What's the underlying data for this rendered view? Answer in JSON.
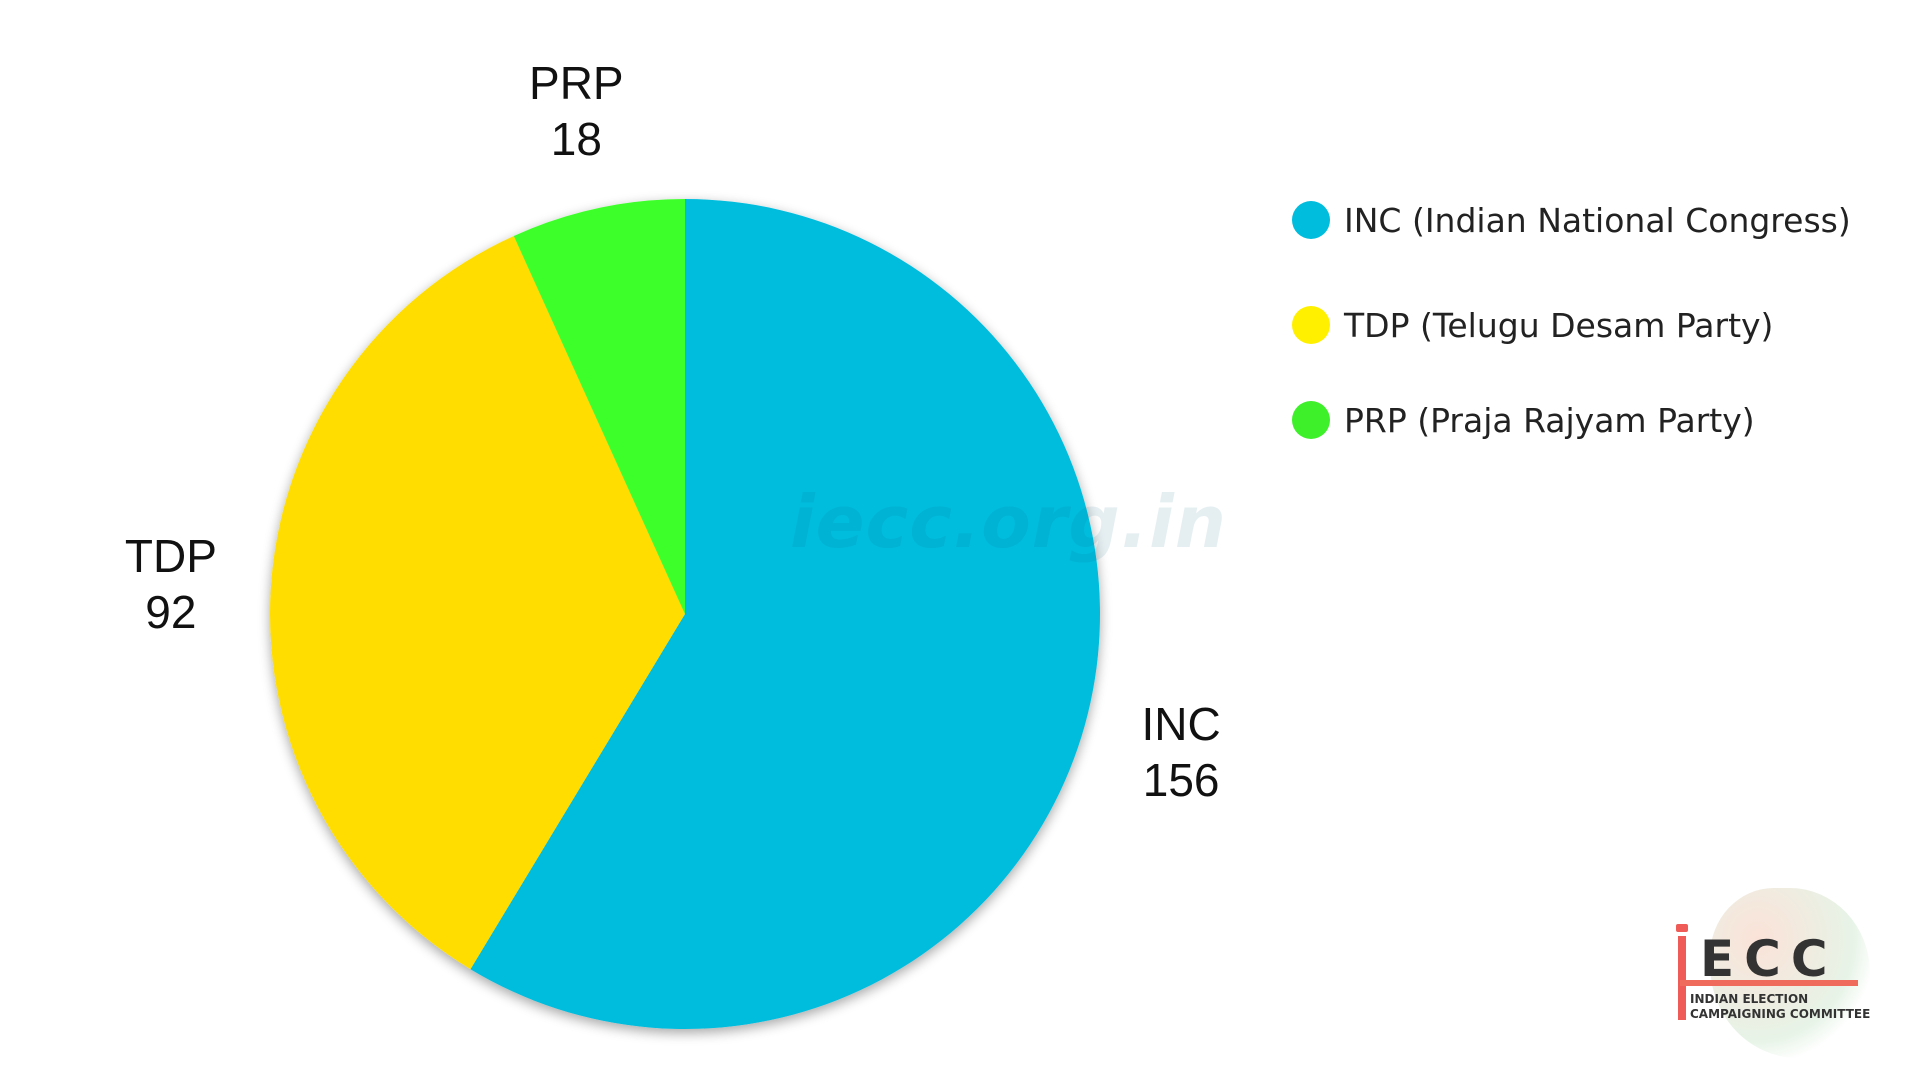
{
  "chart_data": {
    "type": "pie",
    "categories": [
      "INC",
      "TDP",
      "PRP"
    ],
    "values": [
      156,
      92,
      18
    ],
    "colors": [
      "#00BCDD",
      "#FFDD00",
      "#3DFF2A"
    ],
    "start_angle": "top, clockwise",
    "legend": {
      "placement": "right",
      "entries": [
        {
          "label": "INC (Indian National Congress)",
          "color": "#00BCDD"
        },
        {
          "label": "TDP (Telugu Desam Party)",
          "color": "#FFF000"
        },
        {
          "label": "PRP (Praja Rajyam Party)",
          "color": "#3DF02A"
        }
      ]
    }
  },
  "watermark": "iecc.org.in",
  "logo": {
    "text": "ECC",
    "subtitle_line1": "INDIAN ELECTION",
    "subtitle_line2": "CAMPAIGNING COMMITTEE"
  }
}
